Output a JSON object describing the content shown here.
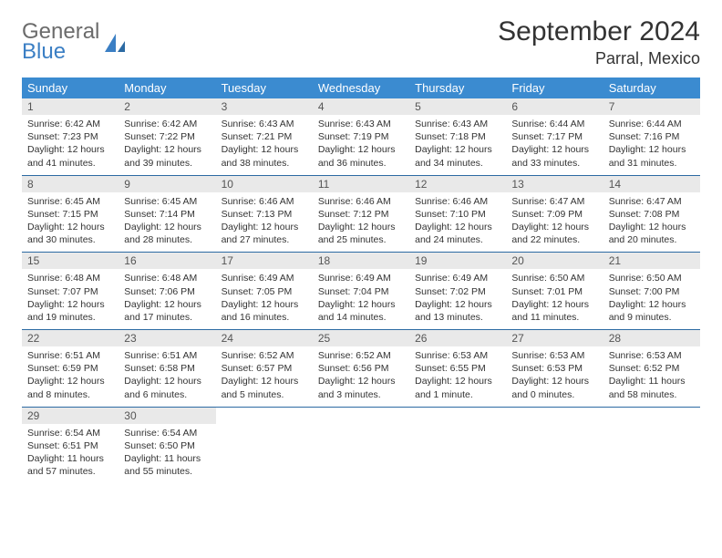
{
  "brand": {
    "top": "General",
    "bottom": "Blue"
  },
  "title": "September 2024",
  "location": "Parral, Mexico",
  "colors": {
    "header_bg": "#3b8bd0",
    "header_text": "#ffffff",
    "daynum_bg": "#e9e9e9",
    "daynum_text": "#555555",
    "cell_text": "#333333",
    "rule": "#2c6aa3",
    "brand_gray": "#6b6b6b",
    "brand_blue": "#3b7fc4"
  },
  "weekdays": [
    "Sunday",
    "Monday",
    "Tuesday",
    "Wednesday",
    "Thursday",
    "Friday",
    "Saturday"
  ],
  "weeks": [
    [
      {
        "n": "1",
        "sr": "Sunrise: 6:42 AM",
        "ss": "Sunset: 7:23 PM",
        "d1": "Daylight: 12 hours",
        "d2": "and 41 minutes."
      },
      {
        "n": "2",
        "sr": "Sunrise: 6:42 AM",
        "ss": "Sunset: 7:22 PM",
        "d1": "Daylight: 12 hours",
        "d2": "and 39 minutes."
      },
      {
        "n": "3",
        "sr": "Sunrise: 6:43 AM",
        "ss": "Sunset: 7:21 PM",
        "d1": "Daylight: 12 hours",
        "d2": "and 38 minutes."
      },
      {
        "n": "4",
        "sr": "Sunrise: 6:43 AM",
        "ss": "Sunset: 7:19 PM",
        "d1": "Daylight: 12 hours",
        "d2": "and 36 minutes."
      },
      {
        "n": "5",
        "sr": "Sunrise: 6:43 AM",
        "ss": "Sunset: 7:18 PM",
        "d1": "Daylight: 12 hours",
        "d2": "and 34 minutes."
      },
      {
        "n": "6",
        "sr": "Sunrise: 6:44 AM",
        "ss": "Sunset: 7:17 PM",
        "d1": "Daylight: 12 hours",
        "d2": "and 33 minutes."
      },
      {
        "n": "7",
        "sr": "Sunrise: 6:44 AM",
        "ss": "Sunset: 7:16 PM",
        "d1": "Daylight: 12 hours",
        "d2": "and 31 minutes."
      }
    ],
    [
      {
        "n": "8",
        "sr": "Sunrise: 6:45 AM",
        "ss": "Sunset: 7:15 PM",
        "d1": "Daylight: 12 hours",
        "d2": "and 30 minutes."
      },
      {
        "n": "9",
        "sr": "Sunrise: 6:45 AM",
        "ss": "Sunset: 7:14 PM",
        "d1": "Daylight: 12 hours",
        "d2": "and 28 minutes."
      },
      {
        "n": "10",
        "sr": "Sunrise: 6:46 AM",
        "ss": "Sunset: 7:13 PM",
        "d1": "Daylight: 12 hours",
        "d2": "and 27 minutes."
      },
      {
        "n": "11",
        "sr": "Sunrise: 6:46 AM",
        "ss": "Sunset: 7:12 PM",
        "d1": "Daylight: 12 hours",
        "d2": "and 25 minutes."
      },
      {
        "n": "12",
        "sr": "Sunrise: 6:46 AM",
        "ss": "Sunset: 7:10 PM",
        "d1": "Daylight: 12 hours",
        "d2": "and 24 minutes."
      },
      {
        "n": "13",
        "sr": "Sunrise: 6:47 AM",
        "ss": "Sunset: 7:09 PM",
        "d1": "Daylight: 12 hours",
        "d2": "and 22 minutes."
      },
      {
        "n": "14",
        "sr": "Sunrise: 6:47 AM",
        "ss": "Sunset: 7:08 PM",
        "d1": "Daylight: 12 hours",
        "d2": "and 20 minutes."
      }
    ],
    [
      {
        "n": "15",
        "sr": "Sunrise: 6:48 AM",
        "ss": "Sunset: 7:07 PM",
        "d1": "Daylight: 12 hours",
        "d2": "and 19 minutes."
      },
      {
        "n": "16",
        "sr": "Sunrise: 6:48 AM",
        "ss": "Sunset: 7:06 PM",
        "d1": "Daylight: 12 hours",
        "d2": "and 17 minutes."
      },
      {
        "n": "17",
        "sr": "Sunrise: 6:49 AM",
        "ss": "Sunset: 7:05 PM",
        "d1": "Daylight: 12 hours",
        "d2": "and 16 minutes."
      },
      {
        "n": "18",
        "sr": "Sunrise: 6:49 AM",
        "ss": "Sunset: 7:04 PM",
        "d1": "Daylight: 12 hours",
        "d2": "and 14 minutes."
      },
      {
        "n": "19",
        "sr": "Sunrise: 6:49 AM",
        "ss": "Sunset: 7:02 PM",
        "d1": "Daylight: 12 hours",
        "d2": "and 13 minutes."
      },
      {
        "n": "20",
        "sr": "Sunrise: 6:50 AM",
        "ss": "Sunset: 7:01 PM",
        "d1": "Daylight: 12 hours",
        "d2": "and 11 minutes."
      },
      {
        "n": "21",
        "sr": "Sunrise: 6:50 AM",
        "ss": "Sunset: 7:00 PM",
        "d1": "Daylight: 12 hours",
        "d2": "and 9 minutes."
      }
    ],
    [
      {
        "n": "22",
        "sr": "Sunrise: 6:51 AM",
        "ss": "Sunset: 6:59 PM",
        "d1": "Daylight: 12 hours",
        "d2": "and 8 minutes."
      },
      {
        "n": "23",
        "sr": "Sunrise: 6:51 AM",
        "ss": "Sunset: 6:58 PM",
        "d1": "Daylight: 12 hours",
        "d2": "and 6 minutes."
      },
      {
        "n": "24",
        "sr": "Sunrise: 6:52 AM",
        "ss": "Sunset: 6:57 PM",
        "d1": "Daylight: 12 hours",
        "d2": "and 5 minutes."
      },
      {
        "n": "25",
        "sr": "Sunrise: 6:52 AM",
        "ss": "Sunset: 6:56 PM",
        "d1": "Daylight: 12 hours",
        "d2": "and 3 minutes."
      },
      {
        "n": "26",
        "sr": "Sunrise: 6:53 AM",
        "ss": "Sunset: 6:55 PM",
        "d1": "Daylight: 12 hours",
        "d2": "and 1 minute."
      },
      {
        "n": "27",
        "sr": "Sunrise: 6:53 AM",
        "ss": "Sunset: 6:53 PM",
        "d1": "Daylight: 12 hours",
        "d2": "and 0 minutes."
      },
      {
        "n": "28",
        "sr": "Sunrise: 6:53 AM",
        "ss": "Sunset: 6:52 PM",
        "d1": "Daylight: 11 hours",
        "d2": "and 58 minutes."
      }
    ],
    [
      {
        "n": "29",
        "sr": "Sunrise: 6:54 AM",
        "ss": "Sunset: 6:51 PM",
        "d1": "Daylight: 11 hours",
        "d2": "and 57 minutes."
      },
      {
        "n": "30",
        "sr": "Sunrise: 6:54 AM",
        "ss": "Sunset: 6:50 PM",
        "d1": "Daylight: 11 hours",
        "d2": "and 55 minutes."
      },
      null,
      null,
      null,
      null,
      null
    ]
  ]
}
